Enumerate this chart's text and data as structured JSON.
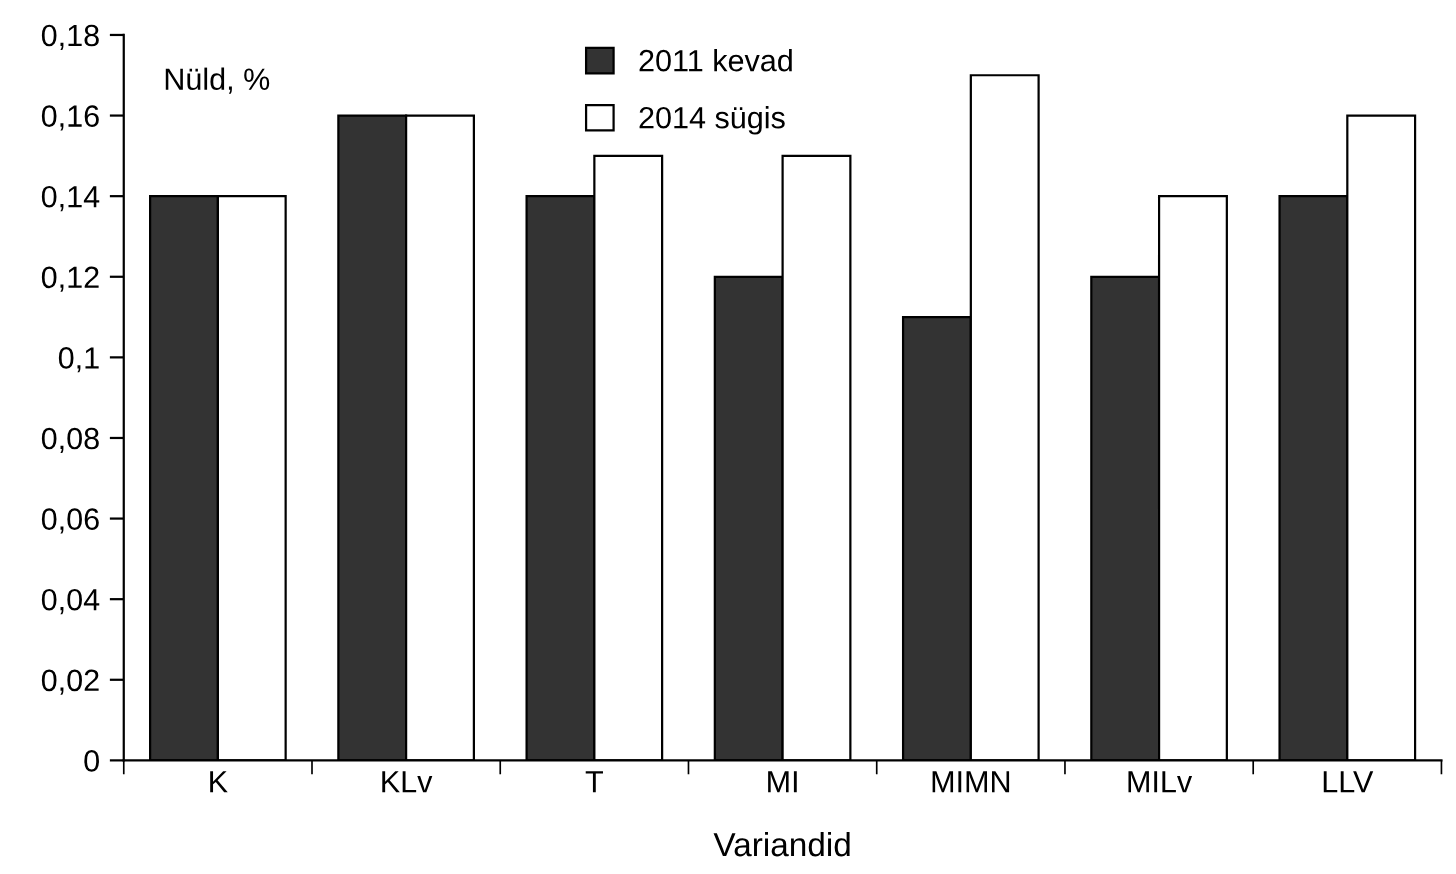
{
  "chart_data": {
    "type": "bar",
    "ylabel": "Nüld, %",
    "xlabel": "Variandid",
    "categories": [
      "K",
      "KLv",
      "T",
      "MI",
      "MIMN",
      "MILv",
      "LLV"
    ],
    "series": [
      {
        "name": "2011 kevad",
        "color": "#333333",
        "values": [
          0.14,
          0.16,
          0.14,
          0.12,
          0.11,
          0.12,
          0.14
        ]
      },
      {
        "name": "2014 sügis",
        "color": "#ffffff",
        "values": [
          0.14,
          0.16,
          0.15,
          0.15,
          0.17,
          0.14,
          0.16
        ]
      }
    ],
    "ylim": [
      0,
      0.18
    ],
    "yticks": [
      {
        "value": 0,
        "label": "0"
      },
      {
        "value": 0.02,
        "label": "0,02"
      },
      {
        "value": 0.04,
        "label": "0,04"
      },
      {
        "value": 0.06,
        "label": "0,06"
      },
      {
        "value": 0.08,
        "label": "0,08"
      },
      {
        "value": 0.1,
        "label": "0,1"
      },
      {
        "value": 0.12,
        "label": "0,12"
      },
      {
        "value": 0.14,
        "label": "0,14"
      },
      {
        "value": 0.16,
        "label": "0,16"
      },
      {
        "value": 0.18,
        "label": "0,18"
      }
    ],
    "legend": "top",
    "grid": false
  }
}
